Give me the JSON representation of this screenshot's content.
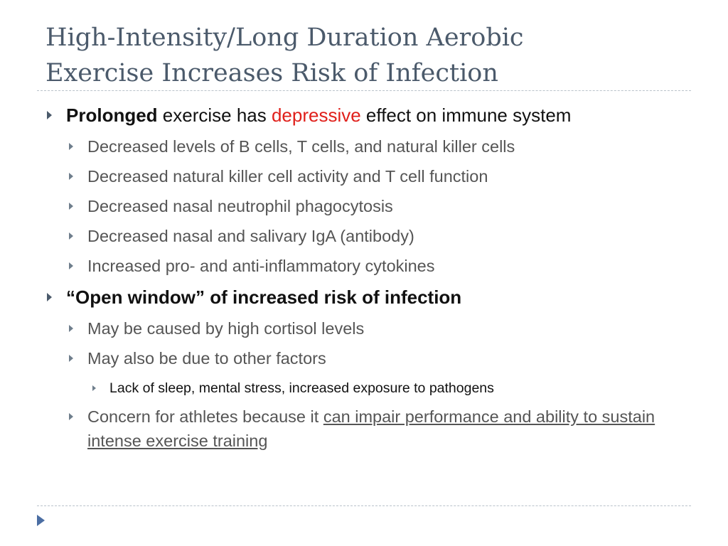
{
  "title": {
    "line1": "High-Intensity/Long Duration Aerobic",
    "line2": "Exercise Increases Risk of Infection"
  },
  "bullets": {
    "b1": {
      "bold": "Prolonged",
      "text_a": " exercise has ",
      "highlight": "depressive",
      "text_b": " effect on immune system",
      "sub": [
        "Decreased levels of B cells, T cells, and natural killer cells",
        "Decreased natural killer cell activity and T cell function",
        "Decreased nasal neutrophil phagocytosis",
        "Decreased nasal and salivary IgA (antibody)",
        "Increased pro- and anti-inflammatory cytokines"
      ]
    },
    "b2": {
      "bold": "“Open window” of increased risk of infection",
      "sub1": "May be caused by high cortisol levels",
      "sub2": "May also be due to other factors",
      "sub2_child": "Lack of sleep, mental stress, increased exposure to pathogens",
      "sub3_text": "Concern for athletes because it ",
      "sub3_link": "can impair performance and ability to sustain intense exercise training"
    }
  },
  "colors": {
    "title": "#4b5a6b",
    "highlight": "#e0201b",
    "level2_text": "#555555",
    "bullet": "#4b5a6b",
    "nav_arrow": "#4b6ea3"
  },
  "icons": {
    "bullet": "triangle-right-icon",
    "nav": "next-slide-arrow-icon"
  }
}
